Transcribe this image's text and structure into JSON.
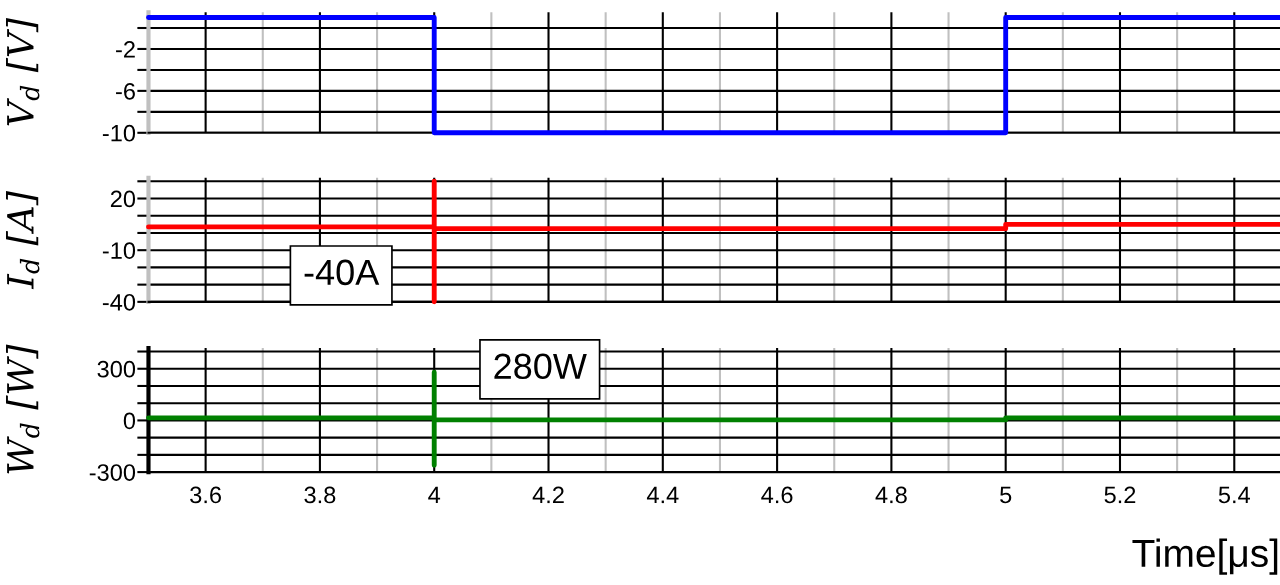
{
  "chart_data": [
    {
      "type": "line",
      "ylabel": "V$_{d}$ [V]",
      "xlim": [
        3.5,
        5.48
      ],
      "ylim": [
        -10,
        1.5
      ],
      "xticks": [
        3.6,
        {
          "value": 3.7,
          "label": null
        },
        3.8,
        {
          "value": 3.9,
          "label": null
        },
        4,
        {
          "value": 4.1,
          "label": null
        },
        4.2,
        {
          "value": 4.3,
          "label": null
        },
        4.4,
        {
          "value": 4.5,
          "label": null
        },
        4.6,
        {
          "value": 4.7,
          "label": null
        },
        4.8,
        {
          "value": 4.9,
          "label": null
        },
        5,
        {
          "value": 5.1,
          "label": null
        },
        5.2,
        {
          "value": 5.3,
          "label": null
        },
        5.4
      ],
      "yticks": [
        {
          "value": 0,
          "label": null
        },
        -2,
        {
          "value": -4,
          "label": null
        },
        -6,
        {
          "value": -8,
          "label": null
        },
        -10
      ],
      "tick_labels": "y",
      "grid": true,
      "line_style": "solid",
      "series": [
        {
          "color": "#0000ff",
          "x": [
            3.5,
            4,
            4,
            5,
            5,
            5.48
          ],
          "values": [
            1,
            1,
            -10,
            -10,
            1,
            1
          ]
        }
      ]
    },
    {
      "type": "line",
      "ylabel": "I$_{d}$ [A]",
      "xlim": [
        3.5,
        5.48
      ],
      "ylim": [
        -40,
        32
      ],
      "xticks": [
        3.6,
        {
          "value": 3.7,
          "label": null
        },
        3.8,
        {
          "value": 3.9,
          "label": null
        },
        4,
        {
          "value": 4.1,
          "label": null
        },
        4.2,
        {
          "value": 4.3,
          "label": null
        },
        4.4,
        {
          "value": 4.5,
          "label": null
        },
        4.6,
        {
          "value": 4.7,
          "label": null
        },
        4.8,
        {
          "value": 4.9,
          "label": null
        },
        5,
        {
          "value": 5.1,
          "label": null
        },
        5.2,
        {
          "value": 5.3,
          "label": null
        },
        5.4
      ],
      "yticks": [
        {
          "value": 30,
          "label": null
        },
        20,
        {
          "value": 10,
          "label": null
        },
        {
          "value": 0,
          "label": null
        },
        -10,
        {
          "value": -20,
          "label": null
        },
        {
          "value": -30,
          "label": null
        },
        -40
      ],
      "tick_labels": "y",
      "grid": true,
      "line_style": "solid",
      "annotations": [
        {
          "text": "-40A",
          "x": 4,
          "y": -40
        }
      ],
      "series": [
        {
          "color": "#ff0000",
          "x": [
            3.5,
            4,
            4,
            4,
            4,
            5,
            5,
            5.48
          ],
          "values": [
            3.5,
            3.5,
            30,
            -40,
            2.5,
            2.5,
            5,
            5
          ]
        }
      ]
    },
    {
      "type": "line",
      "ylabel": "W$_{d}$ [W]",
      "xlabel": "Time[μs]",
      "xlim": [
        3.5,
        5.48
      ],
      "ylim": [
        -300,
        420
      ],
      "xticks": [
        3.6,
        {
          "value": 3.7,
          "label": null
        },
        3.8,
        {
          "value": 3.9,
          "label": null
        },
        4,
        {
          "value": 4.1,
          "label": null
        },
        4.2,
        {
          "value": 4.3,
          "label": null
        },
        4.4,
        {
          "value": 4.5,
          "label": null
        },
        4.6,
        {
          "value": 4.7,
          "label": null
        },
        4.8,
        {
          "value": 4.9,
          "label": null
        },
        5,
        {
          "value": 5.1,
          "label": null
        },
        5.2,
        {
          "value": 5.3,
          "label": null
        },
        5.4
      ],
      "yticks": [
        {
          "value": 400,
          "label": null
        },
        300,
        {
          "value": 200,
          "label": null
        },
        {
          "value": 100,
          "label": null
        },
        0,
        {
          "value": -100,
          "label": null
        },
        {
          "value": -200,
          "label": null
        },
        -300
      ],
      "grid": true,
      "line_style": "solid",
      "annotations": [
        {
          "text": "280W",
          "x": 4,
          "y": 280
        }
      ],
      "series": [
        {
          "color": "#008000",
          "x": [
            3.5,
            4,
            4,
            4,
            4,
            5,
            5,
            5.48
          ],
          "values": [
            15,
            15,
            280,
            -260,
            3,
            3,
            15,
            15
          ]
        }
      ]
    }
  ]
}
